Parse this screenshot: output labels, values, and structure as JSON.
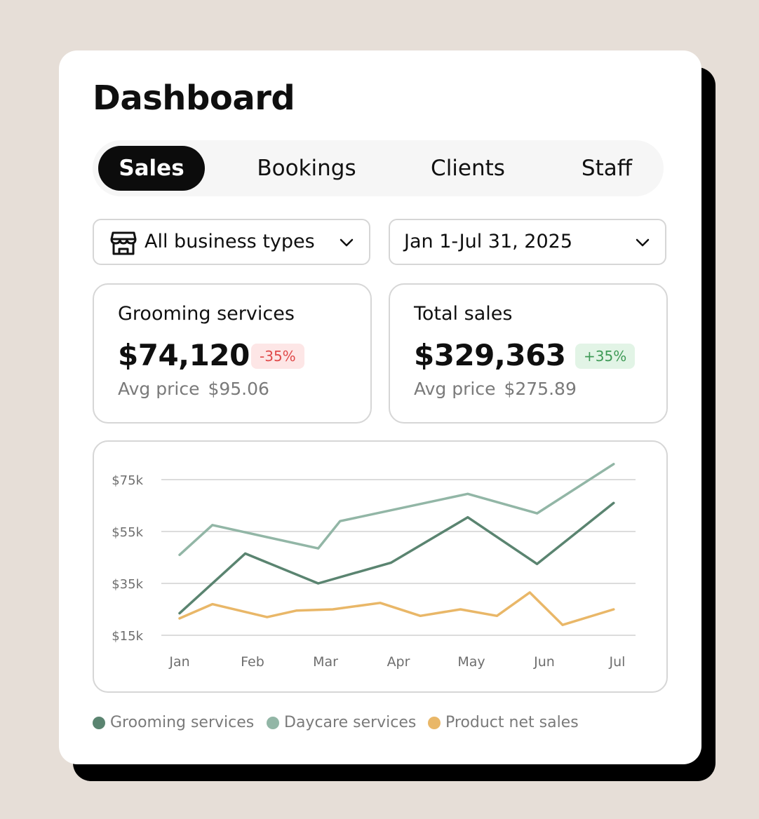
{
  "header": {
    "title": "Dashboard"
  },
  "tabs": [
    {
      "label": "Sales",
      "active": true
    },
    {
      "label": "Bookings",
      "active": false
    },
    {
      "label": "Clients",
      "active": false
    },
    {
      "label": "Staff",
      "active": false
    }
  ],
  "filters": {
    "business_type": {
      "value": "All business types",
      "icon": "storefront-icon"
    },
    "date_range": {
      "value": "Jan 1-Jul 31, 2025"
    }
  },
  "stats": [
    {
      "title": "Grooming services",
      "value": "$74,120",
      "change": "-35%",
      "trend": "down",
      "sub_label": "Avg price",
      "sub_value": "$95.06"
    },
    {
      "title": "Total sales",
      "value": "$329,363",
      "change": "+35%",
      "trend": "up",
      "sub_label": "Avg price",
      "sub_value": "$275.89"
    }
  ],
  "colors": {
    "grooming": "#5a8470",
    "daycare": "#92b6a6",
    "product": "#e9b768",
    "negative": "#e04a4a",
    "positive": "#3f9a57"
  },
  "chart_data": {
    "type": "line",
    "categories": [
      "Jan",
      "Feb",
      "Mar",
      "Apr",
      "May",
      "Jun",
      "Jul"
    ],
    "yticks": [
      "$75k",
      "$55k",
      "$35k",
      "$15k"
    ],
    "ytick_values": [
      75,
      55,
      35,
      15
    ],
    "ylim": [
      15,
      75
    ],
    "x_range": [
      0,
      6
    ],
    "grid": true,
    "series": [
      {
        "name": "Grooming services",
        "color": "#5a8470",
        "x": [
          0,
          0.9,
          1.9,
          2.9,
          3.95,
          4.9,
          5.95
        ],
        "values": [
          23.5,
          46.5,
          35,
          43,
          60.5,
          42.5,
          66
        ]
      },
      {
        "name": "Daycare services",
        "color": "#92b6a6",
        "x": [
          0,
          0.45,
          1.9,
          2.2,
          3.95,
          4.9,
          5.95
        ],
        "values": [
          46,
          57.5,
          48.5,
          59,
          69.5,
          62,
          81
        ]
      },
      {
        "name": "Product net sales",
        "color": "#e9b768",
        "x": [
          0,
          0.45,
          1.2,
          1.6,
          2.1,
          2.75,
          3.3,
          3.85,
          4.35,
          4.8,
          5.25,
          5.95
        ],
        "values": [
          21.5,
          27,
          22,
          24.5,
          25,
          27.5,
          22.5,
          25,
          22.5,
          31.5,
          19,
          25
        ]
      }
    ]
  },
  "legend": [
    {
      "label": "Grooming services",
      "color": "#5a8470"
    },
    {
      "label": "Daycare services",
      "color": "#92b6a6"
    },
    {
      "label": "Product net sales",
      "color": "#e9b768"
    }
  ]
}
